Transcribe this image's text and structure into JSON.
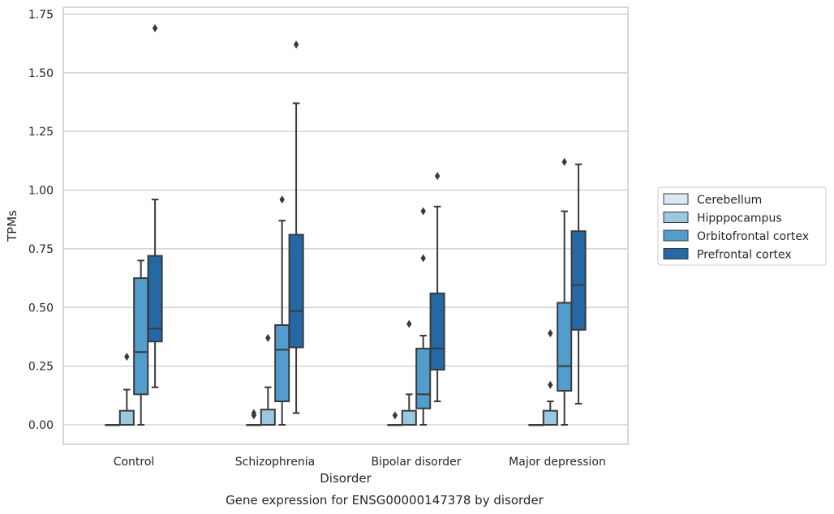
{
  "chart_data": {
    "type": "box",
    "xlabel": "Disorder",
    "ylabel": "TPMs",
    "caption": "Gene expression for ENSG00000147378 by disorder",
    "categories": [
      "Control",
      "Schizophrenia",
      "Bipolar disorder",
      "Major depression"
    ],
    "y_ticks": [
      "0.00",
      "0.25",
      "0.50",
      "0.75",
      "1.00",
      "1.25",
      "1.50",
      "1.75"
    ],
    "ylim": [
      -0.08,
      1.77
    ],
    "grid": "horizontal",
    "legend_position": "right",
    "series": [
      {
        "name": "Cerebellum",
        "color": "#dbe9f6",
        "boxes": [
          {
            "min": 0.0,
            "q1": 0.0,
            "median": 0.0,
            "q3": 0.0,
            "max": 0.0,
            "outliers": []
          },
          {
            "min": 0.0,
            "q1": 0.0,
            "median": 0.0,
            "q3": 0.0,
            "max": 0.0,
            "outliers": [
              0.04,
              0.05
            ]
          },
          {
            "min": 0.0,
            "q1": 0.0,
            "median": 0.0,
            "q3": 0.0,
            "max": 0.0,
            "outliers": [
              0.04
            ]
          },
          {
            "min": 0.0,
            "q1": 0.0,
            "median": 0.0,
            "q3": 0.0,
            "max": 0.0,
            "outliers": []
          }
        ]
      },
      {
        "name": "Hipppocampus",
        "color": "#9ac8e0",
        "boxes": [
          {
            "min": 0.0,
            "q1": 0.0,
            "median": 0.0,
            "q3": 0.06,
            "max": 0.15,
            "outliers": [
              0.29
            ]
          },
          {
            "min": 0.0,
            "q1": 0.0,
            "median": 0.0,
            "q3": 0.065,
            "max": 0.16,
            "outliers": [
              0.37
            ]
          },
          {
            "min": 0.0,
            "q1": 0.0,
            "median": 0.0,
            "q3": 0.06,
            "max": 0.13,
            "outliers": [
              0.43
            ]
          },
          {
            "min": 0.0,
            "q1": 0.0,
            "median": 0.0,
            "q3": 0.06,
            "max": 0.1,
            "outliers": [
              0.17,
              0.39
            ]
          }
        ]
      },
      {
        "name": "Orbitofrontal cortex",
        "color": "#529dcc",
        "boxes": [
          {
            "min": 0.0,
            "q1": 0.13,
            "median": 0.31,
            "q3": 0.625,
            "max": 0.7,
            "outliers": []
          },
          {
            "min": 0.0,
            "q1": 0.1,
            "median": 0.32,
            "q3": 0.425,
            "max": 0.87,
            "outliers": [
              0.96
            ]
          },
          {
            "min": 0.0,
            "q1": 0.07,
            "median": 0.13,
            "q3": 0.325,
            "max": 0.38,
            "outliers": [
              0.71,
              0.91
            ]
          },
          {
            "min": 0.0,
            "q1": 0.145,
            "median": 0.25,
            "q3": 0.52,
            "max": 0.91,
            "outliers": [
              1.12
            ]
          }
        ]
      },
      {
        "name": "Prefrontal cortex",
        "color": "#2469a6",
        "boxes": [
          {
            "min": 0.16,
            "q1": 0.355,
            "median": 0.41,
            "q3": 0.72,
            "max": 0.96,
            "outliers": [
              1.69
            ]
          },
          {
            "min": 0.05,
            "q1": 0.33,
            "median": 0.485,
            "q3": 0.81,
            "max": 1.37,
            "outliers": [
              1.62
            ]
          },
          {
            "min": 0.1,
            "q1": 0.235,
            "median": 0.325,
            "q3": 0.56,
            "max": 0.93,
            "outliers": [
              1.06
            ]
          },
          {
            "min": 0.09,
            "q1": 0.405,
            "median": 0.595,
            "q3": 0.825,
            "max": 1.11,
            "outliers": []
          }
        ]
      }
    ]
  }
}
